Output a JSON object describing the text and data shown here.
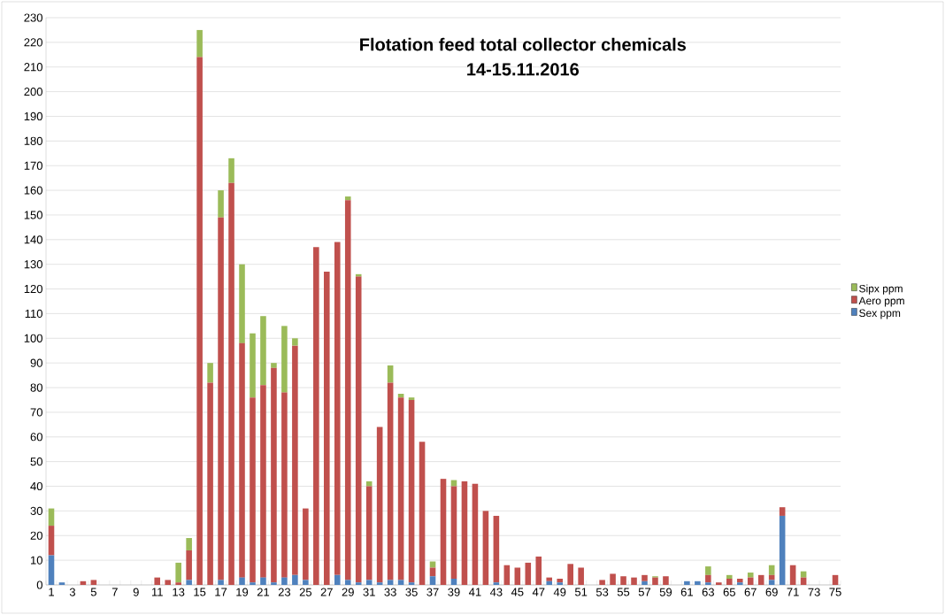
{
  "chart_data": {
    "type": "bar",
    "title": "Flotation feed total collector chemicals",
    "subtitle": "14-15.11.2016",
    "categories": [
      "1",
      null,
      "3",
      null,
      "5",
      null,
      "7",
      null,
      "9",
      null,
      "11",
      null,
      "13",
      null,
      "15",
      null,
      "17",
      null,
      "19",
      null,
      "21",
      null,
      "23",
      null,
      "25",
      null,
      "27",
      null,
      "29",
      null,
      "31",
      null,
      "33",
      null,
      "35",
      null,
      "37",
      null,
      "39",
      null,
      "41",
      null,
      "43",
      null,
      "45",
      null,
      "47",
      null,
      "49",
      null,
      "51",
      null,
      "53",
      null,
      "55",
      null,
      "57",
      null,
      "59",
      null,
      "61",
      null,
      "63",
      null,
      "65",
      null,
      "67",
      null,
      "69",
      null,
      "71",
      null,
      "73",
      null,
      "75"
    ],
    "stacked": true,
    "series": [
      {
        "name": "Sex ppm",
        "color": "#4f81bd",
        "values": [
          12,
          1,
          0,
          0,
          0,
          0,
          0,
          0,
          0,
          0,
          0,
          0,
          0,
          2,
          0,
          0,
          2,
          0,
          3,
          1,
          3,
          1,
          3,
          4,
          2,
          0,
          0,
          4,
          2,
          1,
          2,
          1,
          2,
          2,
          1,
          0,
          3.5,
          0,
          2.5,
          0,
          0,
          0,
          1,
          0,
          0,
          0,
          0,
          1.5,
          1,
          0,
          0,
          0,
          0,
          0,
          0,
          0,
          1.5,
          0,
          0,
          0,
          1.5,
          1.5,
          1,
          0,
          0,
          1,
          0,
          0,
          2,
          28,
          0,
          0,
          0,
          0,
          0
        ]
      },
      {
        "name": "Aero ppm",
        "color": "#c0504d",
        "values": [
          12,
          0,
          0,
          1.5,
          2,
          0,
          0,
          0,
          0,
          0,
          3,
          2,
          1,
          12,
          214,
          82,
          147,
          163,
          95,
          75,
          78,
          87,
          75,
          93,
          29,
          137,
          127,
          135,
          154,
          124,
          38,
          63,
          80,
          74,
          74,
          58,
          3.5,
          43,
          37.5,
          42,
          41,
          30,
          27,
          8,
          7,
          9,
          11.5,
          1.5,
          1.5,
          8.5,
          7,
          0,
          2,
          4.5,
          3.5,
          3,
          2.5,
          3,
          3.5,
          0,
          0,
          0,
          3,
          1,
          2.5,
          1.5,
          3,
          4,
          2,
          3.5,
          8,
          3,
          0,
          0,
          4
        ]
      },
      {
        "name": "Sipx ppm",
        "color": "#9bbb59",
        "values": [
          7,
          0,
          0,
          0,
          0,
          0,
          0,
          0,
          0,
          0,
          0,
          0,
          8,
          5,
          11,
          8,
          11,
          10,
          32,
          26,
          28,
          2,
          27,
          3,
          0,
          0,
          0,
          0,
          1.5,
          1,
          2,
          0,
          7,
          1.5,
          1,
          0,
          2.5,
          0,
          2.5,
          0,
          0,
          0,
          0,
          0,
          0,
          0,
          0,
          0,
          0,
          0,
          0,
          0,
          0,
          0,
          0,
          0,
          0,
          0.5,
          0,
          0,
          0,
          0,
          3.5,
          0,
          1.5,
          0,
          2,
          0,
          4,
          0,
          0,
          2.5,
          0,
          0,
          0
        ]
      }
    ],
    "ylim": [
      0,
      230
    ],
    "yticks": [
      0,
      10,
      20,
      30,
      40,
      50,
      60,
      70,
      80,
      90,
      100,
      110,
      120,
      130,
      140,
      150,
      160,
      170,
      180,
      190,
      200,
      210,
      220,
      230
    ],
    "grid": "y",
    "legend": "right"
  }
}
